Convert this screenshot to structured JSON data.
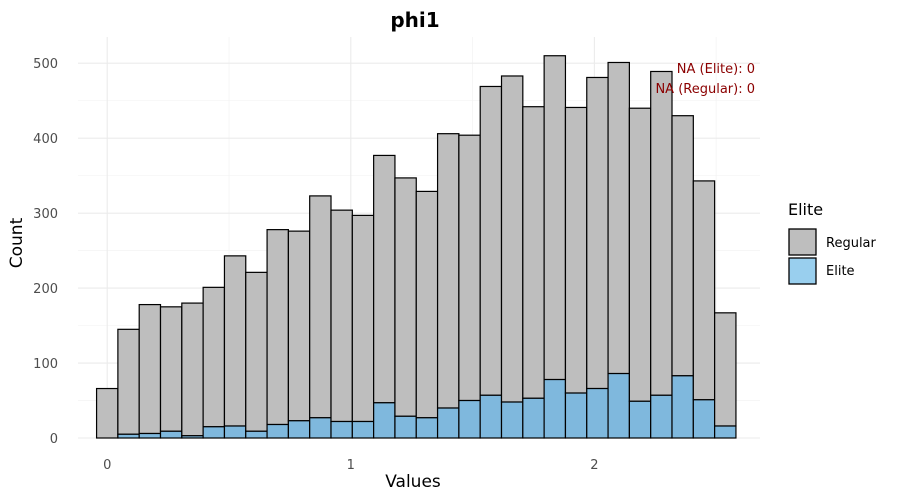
{
  "chart_data": {
    "type": "bar",
    "subtype": "stacked-histogram",
    "title": "phi1",
    "xlabel": "Values",
    "ylabel": "Count",
    "xlim": [
      -0.12,
      2.68
    ],
    "ylim": [
      0,
      535
    ],
    "x_ticks": [
      0,
      1,
      2
    ],
    "x_tick_labels": [
      "0",
      "1",
      "2"
    ],
    "y_ticks": [
      0,
      100,
      200,
      300,
      400,
      500
    ],
    "y_tick_labels": [
      "0",
      "100",
      "200",
      "300",
      "400",
      "500"
    ],
    "grid": true,
    "bin_width": 0.0875,
    "bin_centers": [
      0.0,
      0.0875,
      0.175,
      0.2625,
      0.35,
      0.4375,
      0.525,
      0.6125,
      0.7,
      0.7875,
      0.875,
      0.9625,
      1.05,
      1.1375,
      1.225,
      1.3125,
      1.4,
      1.4875,
      1.575,
      1.6625,
      1.75,
      1.8375,
      1.925,
      2.0125,
      2.1,
      2.1875,
      2.275,
      2.3625,
      2.45,
      2.5375
    ],
    "series": [
      {
        "name": "Elite",
        "color": "#7fb8dd",
        "values": [
          0,
          5,
          6,
          9,
          3,
          15,
          16,
          9,
          18,
          23,
          27,
          22,
          22,
          47,
          29,
          27,
          40,
          50,
          57,
          48,
          53,
          78,
          60,
          66,
          86,
          49,
          57,
          83,
          51,
          16
        ]
      },
      {
        "name": "Regular",
        "color": "#bebebe",
        "values": [
          66,
          140,
          172,
          166,
          177,
          186,
          227,
          212,
          260,
          253,
          296,
          282,
          275,
          330,
          318,
          302,
          366,
          354,
          412,
          435,
          389,
          432,
          381,
          415,
          415,
          391,
          432,
          347,
          292,
          151
        ]
      }
    ],
    "annotations": [
      "NA (Elite): 0",
      "NA (Regular): 0"
    ],
    "legend": {
      "title": "Elite",
      "placement": "right",
      "entries": [
        {
          "label": "Regular",
          "color": "#bebebe"
        },
        {
          "label": "Elite",
          "color": "#99cfee"
        }
      ]
    }
  }
}
